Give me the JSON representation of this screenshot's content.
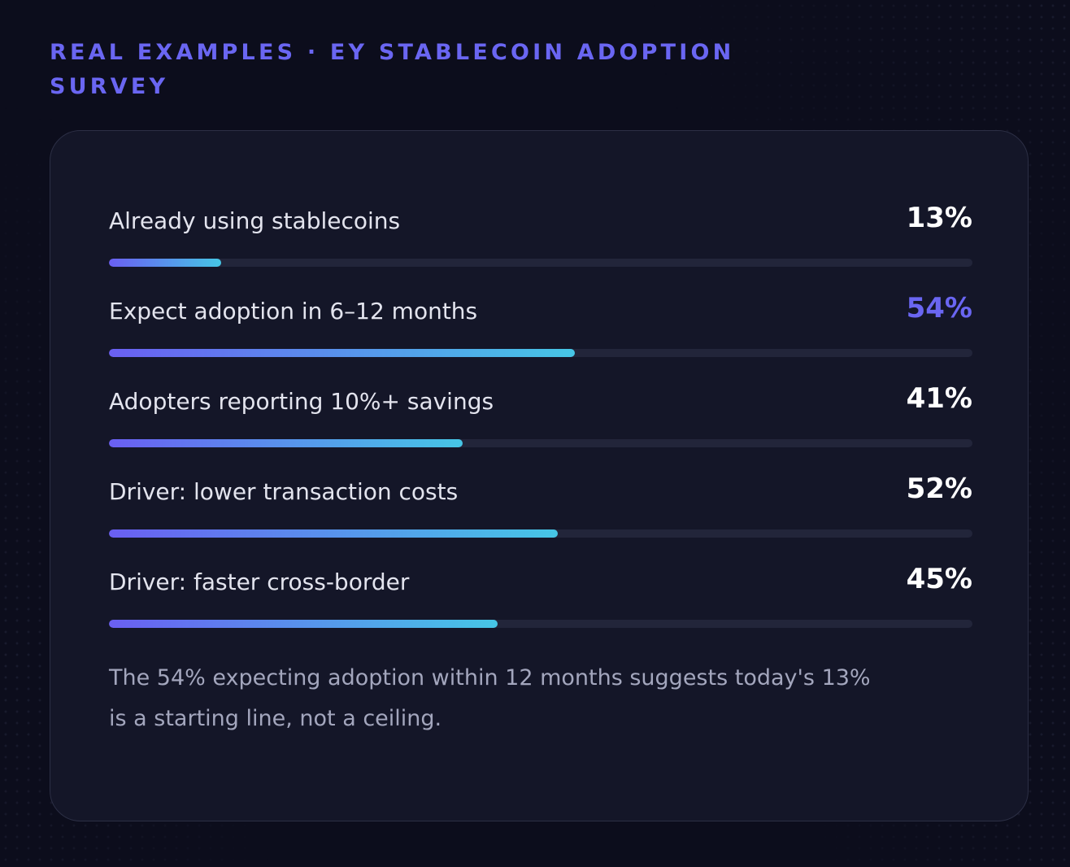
{
  "header": {
    "eyebrow": "REAL EXAMPLES · EY STABLECOIN ADOPTION SURVEY"
  },
  "colors": {
    "accent": "#6a66f2",
    "bar_start": "#6a5ff2",
    "bar_end": "#46c6e6",
    "value_default": "#ffffff"
  },
  "chart_data": {
    "type": "bar",
    "orientation": "horizontal",
    "xlim": [
      0,
      100
    ],
    "categories": [
      "Already using stablecoins",
      "Expect adoption in 6–12 months",
      "Adopters reporting 10%+ savings",
      "Driver: lower transaction costs",
      "Driver: faster cross-border"
    ],
    "values": [
      13,
      54,
      41,
      52,
      45
    ],
    "value_labels": [
      "13%",
      "54%",
      "41%",
      "52%",
      "45%"
    ],
    "highlight_index": 1
  },
  "note": "The 54% expecting adoption within 12 months suggests today's 13% is a starting line, not a ceiling."
}
